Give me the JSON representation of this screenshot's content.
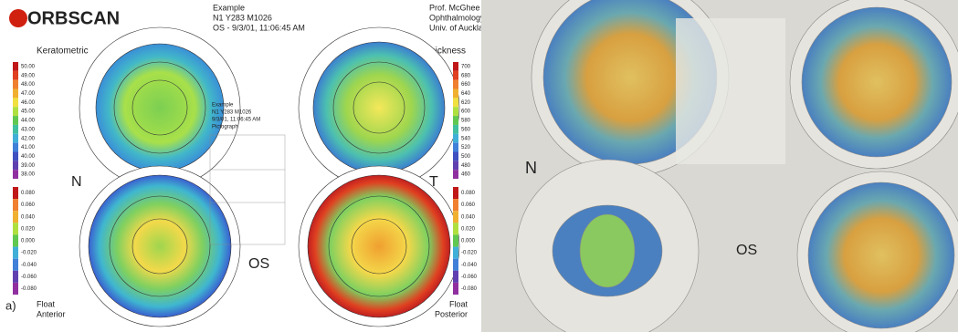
{
  "left_panel": {
    "logo": "ORBSCAN",
    "header_center": [
      "Example",
      "N1 Y283 M1026",
      "OS - 9/3/01, 11:06:45 AM"
    ],
    "header_right": [
      "Prof. McGhee",
      "Ophthalmology",
      "Univ. of Auckland"
    ],
    "maps": {
      "top_left": "Keratometric",
      "top_right": "Thickness",
      "bottom_left": [
        "Float",
        "Anterior"
      ],
      "bottom_right": [
        "Float",
        "Posterior"
      ]
    },
    "side_labels": {
      "nasal": "N",
      "temporal": "T",
      "eye": "OS",
      "panel": "a)"
    },
    "center_block": [
      "Example",
      "N1 Y283 M1026",
      "9/3/01, 11:06:45 AM",
      "Pictograph"
    ],
    "scales": {
      "keratometric": [
        "50.00",
        "49.00",
        "48.00",
        "47.00",
        "46.00",
        "45.00",
        "44.00",
        "43.00",
        "42.00",
        "41.00",
        "40.00",
        "39.00",
        "38.00"
      ],
      "thickness": [
        "700",
        "680",
        "660",
        "640",
        "620",
        "600",
        "580",
        "560",
        "540",
        "520",
        "500",
        "480",
        "460"
      ],
      "anterior": [
        "0.080",
        "0.060",
        "0.040",
        "0.020",
        "0.000",
        "-0.020",
        "-0.040",
        "-0.060",
        "-0.080"
      ],
      "posterior": [
        "0.080",
        "0.060",
        "0.040",
        "0.020",
        "0.000",
        "-0.020",
        "-0.040",
        "-0.060",
        "-0.080"
      ]
    }
  },
  "right_panel": {
    "nasal": "N",
    "eye": "OS"
  }
}
